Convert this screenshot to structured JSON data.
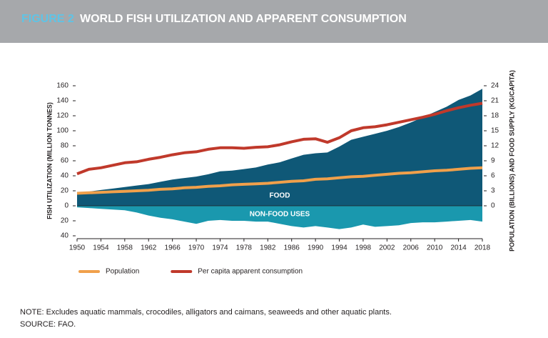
{
  "chart_data": {
    "type": "area",
    "title_prefix": "FIGURE 2",
    "title": "WORLD FISH UTILIZATION AND APPARENT CONSUMPTION",
    "y_label": "FISH UTILIZATION (MILLION TONNES)",
    "y2_label": "POPULATION (BILLIONS) AND FOOD SUPPLY (KG/CAPITA)",
    "note": "NOTE: Excludes aquatic mammals, crocodiles, alligators and caimans, seaweeds and other aquatic plants.",
    "source": "SOURCE: FAO.",
    "x": [
      1950,
      1952,
      1954,
      1956,
      1958,
      1960,
      1962,
      1964,
      1966,
      1968,
      1970,
      1972,
      1974,
      1976,
      1978,
      1980,
      1982,
      1984,
      1986,
      1988,
      1990,
      1992,
      1994,
      1996,
      1998,
      2000,
      2002,
      2004,
      2006,
      2008,
      2010,
      2012,
      2014,
      2016,
      2018
    ],
    "xlim": [
      1950,
      2018
    ],
    "xticks": [
      1950,
      1954,
      1958,
      1962,
      1966,
      1970,
      1974,
      1978,
      1982,
      1986,
      1990,
      1994,
      1998,
      2002,
      2006,
      2010,
      2014,
      2018
    ],
    "ylim": [
      -40,
      160
    ],
    "yticks": [
      {
        "value": -40,
        "label": "40"
      },
      {
        "value": -20,
        "label": "20"
      },
      0,
      20,
      40,
      60,
      80,
      100,
      120,
      140,
      160
    ],
    "y2lim": [
      -6,
      24
    ],
    "y2ticks": [
      0,
      3,
      6,
      9,
      12,
      15,
      18,
      21,
      24
    ],
    "series": [
      {
        "name": "FOOD",
        "type": "area",
        "color": "#0f5877",
        "values": [
          17,
          19,
          21,
          23,
          25,
          27,
          29,
          32,
          35,
          37,
          39,
          42,
          46,
          47,
          49,
          51,
          55,
          58,
          63,
          68,
          70,
          71,
          79,
          88,
          92,
          96,
          100,
          105,
          111,
          118,
          125,
          132,
          141,
          147,
          156
        ]
      },
      {
        "name": "NON-FOOD USES",
        "type": "area",
        "color": "#1a98ae",
        "values": [
          -2,
          -3,
          -4,
          -5,
          -6,
          -9,
          -13,
          -16,
          -18,
          -21,
          -24,
          -20,
          -19,
          -20,
          -20,
          -21,
          -21,
          -24,
          -27,
          -29,
          -27,
          -29,
          -31,
          -29,
          -25,
          -28,
          -27,
          -26,
          -23,
          -22,
          -22,
          -21,
          -20,
          -19,
          -21
        ]
      },
      {
        "name": "Population",
        "type": "line",
        "axis": "y2",
        "color": "#f0a04b",
        "values": [
          2.5,
          2.6,
          2.7,
          2.8,
          2.9,
          3.0,
          3.1,
          3.3,
          3.4,
          3.6,
          3.7,
          3.9,
          4.0,
          4.2,
          4.3,
          4.4,
          4.5,
          4.7,
          4.9,
          5.0,
          5.3,
          5.4,
          5.6,
          5.8,
          5.9,
          6.1,
          6.3,
          6.5,
          6.6,
          6.8,
          7.0,
          7.1,
          7.3,
          7.5,
          7.6
        ]
      },
      {
        "name": "Per capita apparent consumption",
        "type": "line",
        "axis": "y2",
        "color": "#c0392b",
        "values": [
          6.4,
          7.3,
          7.6,
          8.1,
          8.6,
          8.8,
          9.3,
          9.7,
          10.2,
          10.6,
          10.8,
          11.3,
          11.6,
          11.6,
          11.5,
          11.7,
          11.8,
          12.2,
          12.8,
          13.3,
          13.4,
          12.7,
          13.6,
          15.0,
          15.6,
          15.8,
          16.2,
          16.7,
          17.2,
          17.7,
          18.3,
          19.0,
          19.6,
          20.1,
          20.5
        ]
      }
    ]
  }
}
